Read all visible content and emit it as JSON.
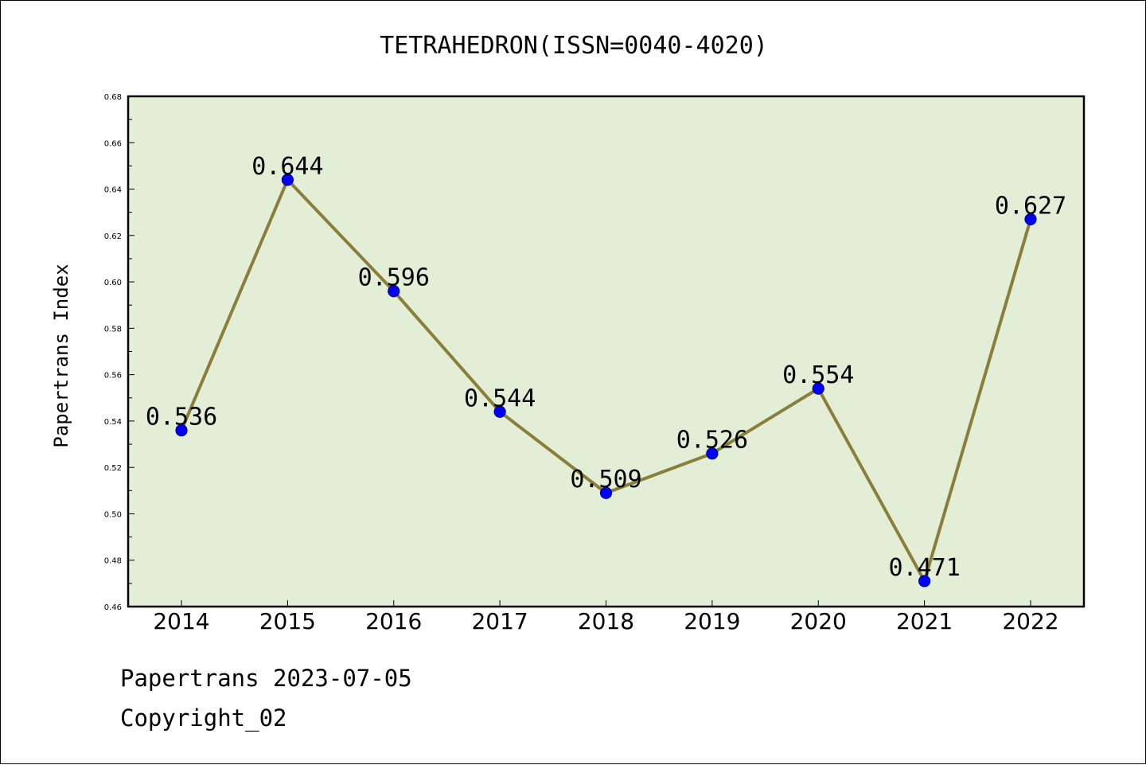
{
  "chart_data": {
    "type": "line",
    "title": "TETRAHEDRON(ISSN=0040-4020)",
    "xlabel": "",
    "ylabel": "Papertrans Index",
    "categories": [
      "2014",
      "2015",
      "2016",
      "2017",
      "2018",
      "2019",
      "2020",
      "2021",
      "2022"
    ],
    "series": [
      {
        "values": [
          0.536,
          0.644,
          0.596,
          0.544,
          0.509,
          0.526,
          0.554,
          0.471,
          0.627
        ],
        "data_labels": [
          "0.536",
          "0.644",
          "0.596",
          "0.544",
          "0.509",
          "0.526",
          "0.554",
          "0.471",
          "0.627"
        ]
      }
    ],
    "ylim": [
      0.46,
      0.68
    ],
    "yticks": [
      "0.46",
      "0.48",
      "0.50",
      "0.52",
      "0.54",
      "0.56",
      "0.58",
      "0.60",
      "0.62",
      "0.64",
      "0.66",
      "0.68"
    ],
    "grid": false,
    "legend": "none"
  },
  "colors": {
    "plot_background": "#e2efd6",
    "line": "#8b7d3a",
    "marker_fill": "#0000ff",
    "marker_edge": "#00008b",
    "axes": "#000000"
  },
  "footer": {
    "date_line": "Papertrans 2023-07-05",
    "copyright": "Copyright_02"
  }
}
